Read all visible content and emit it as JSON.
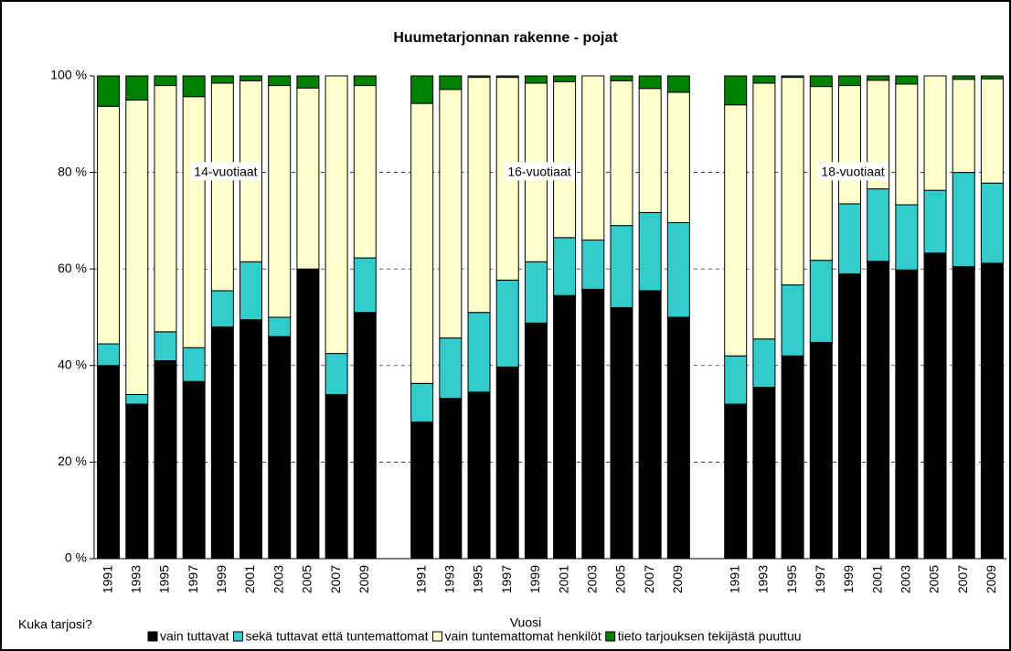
{
  "chart_data": {
    "type": "stacked_bar",
    "title": "Huumetarjonnan rakenne - pojat",
    "x_label": "Vuosi",
    "legend_title": "Kuka tarjosi?",
    "annotations": [
      "14-vuotiaat",
      "16-vuotiaat",
      "18-vuotiaat"
    ],
    "categories": [
      "1991",
      "1993",
      "1995",
      "1997",
      "1999",
      "2001",
      "2003",
      "2005",
      "2007",
      "2009",
      null,
      "1991",
      "1993",
      "1995",
      "1997",
      "1999",
      "2001",
      "2003",
      "2005",
      "2007",
      "2009",
      null,
      "1991",
      "1993",
      "1995",
      "1997",
      "1999",
      "2001",
      "2003",
      "2005",
      "2007",
      "2009"
    ],
    "ylim": [
      0,
      100
    ],
    "yticks": [
      {
        "value": 0,
        "label": "0 %"
      },
      {
        "value": 20,
        "label": "20 %"
      },
      {
        "value": 40,
        "label": "40 %"
      },
      {
        "value": 60,
        "label": "60 %"
      },
      {
        "value": 80,
        "label": "80 %"
      },
      {
        "value": 100,
        "label": "100 %"
      }
    ],
    "grid": true,
    "series": [
      {
        "name": "vain tuttavat",
        "color": "#000000",
        "values": [
          40,
          32,
          41,
          36.7,
          48,
          49.5,
          46,
          60,
          34,
          51,
          null,
          28.3,
          33.2,
          34.5,
          39.7,
          48.8,
          54.5,
          55.8,
          52,
          55.5,
          50,
          null,
          32,
          35.5,
          42,
          44.8,
          59,
          61.6,
          59.8,
          63.3,
          60.5,
          61.2
        ]
      },
      {
        "name": "sekä tuttavat että tuntemattomat",
        "color": "#33cccc",
        "values": [
          4.5,
          2,
          6,
          7,
          7.5,
          12,
          4,
          0,
          8.5,
          11.3,
          null,
          8,
          12.5,
          16.5,
          18,
          12.7,
          12,
          10.2,
          17,
          16.2,
          19.6,
          null,
          10,
          10,
          14.7,
          17,
          14.5,
          15,
          13.5,
          13,
          19.5,
          16.6
        ]
      },
      {
        "name": "vain tuntemattomat henkilöt",
        "color": "#ffffcc",
        "values": [
          49.2,
          61,
          51,
          52,
          43,
          37.5,
          48,
          37.5,
          57.5,
          35.7,
          null,
          58,
          51.5,
          48.7,
          42,
          37,
          32.3,
          34,
          30,
          25.7,
          27,
          null,
          52,
          53,
          43,
          36,
          24.5,
          22.5,
          25,
          23.7,
          19.3,
          21.6
        ]
      },
      {
        "name": "tieto tarjouksen tekijästä puuttuu",
        "color": "#008000",
        "values": [
          6.3,
          5,
          2,
          4.3,
          1.5,
          1,
          2,
          2.5,
          0,
          2,
          null,
          5.7,
          2.8,
          0.3,
          0.3,
          1.5,
          1.2,
          0,
          1,
          2.6,
          3.4,
          null,
          6,
          1.5,
          0.3,
          2.2,
          2,
          0.9,
          1.7,
          0,
          0.7,
          0.6
        ]
      }
    ]
  }
}
